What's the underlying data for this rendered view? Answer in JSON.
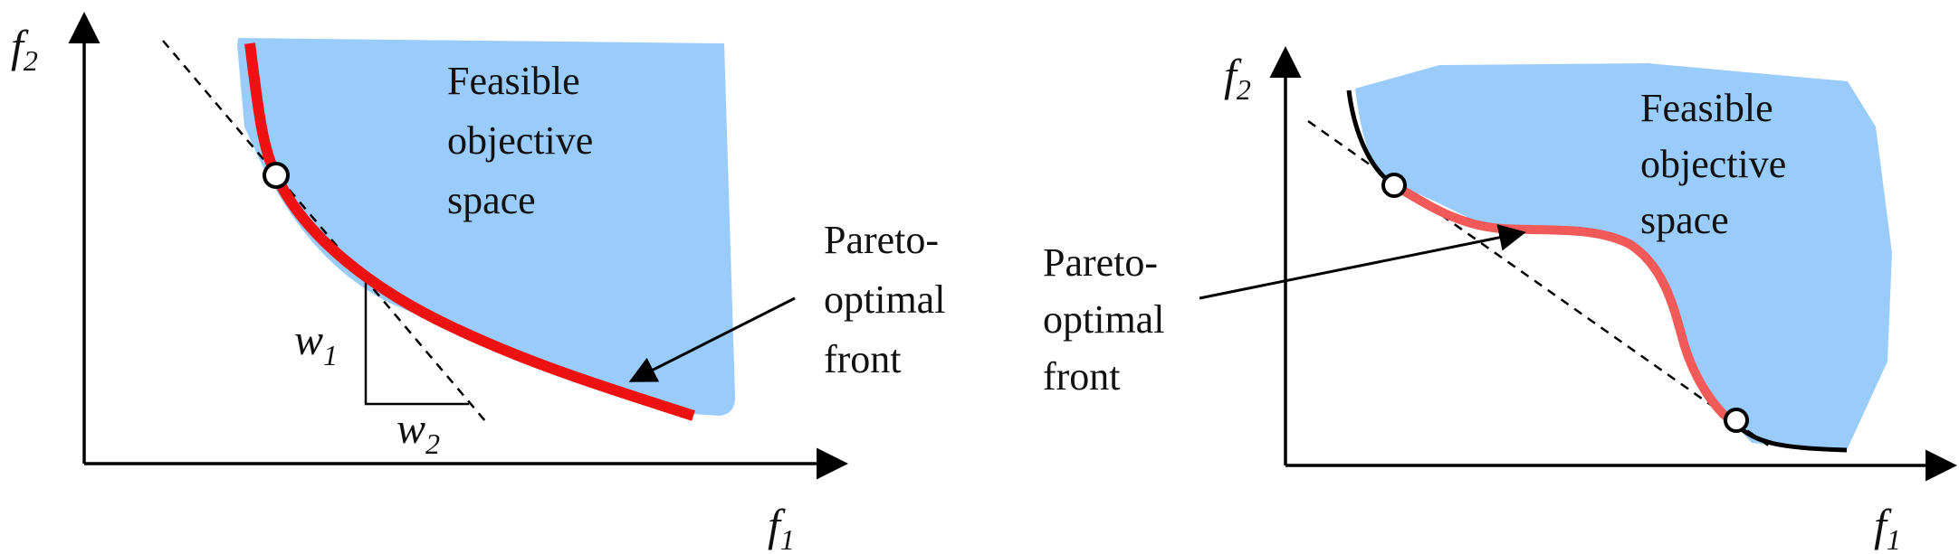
{
  "left": {
    "axis_y": {
      "base": "f",
      "sub": "2"
    },
    "axis_x": {
      "base": "f",
      "sub": "1"
    },
    "region_label": [
      "Feasible",
      "objective",
      "space"
    ],
    "front_label": [
      "Pareto-",
      "optimal",
      "front"
    ],
    "weight_y": {
      "base": "w",
      "sub": "1"
    },
    "weight_x": {
      "base": "w",
      "sub": "2"
    }
  },
  "right": {
    "axis_y": {
      "base": "f",
      "sub": "2"
    },
    "axis_x": {
      "base": "f",
      "sub": "1"
    },
    "region_label": [
      "Feasible",
      "objective",
      "space"
    ],
    "front_label": [
      "Pareto-",
      "optimal",
      "front"
    ]
  },
  "colors": {
    "feasible_fill": "#99ccfa",
    "pareto_left": "#ee1111",
    "pareto_right": "#f25a5a",
    "boundary": "#000000"
  }
}
